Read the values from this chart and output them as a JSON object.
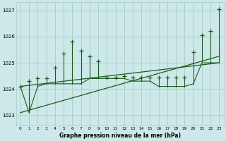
{
  "xlabel": "Graphe pression niveau de la mer (hPa)",
  "bg_color": "#cce8e8",
  "grid_color": "#aacccc",
  "line_color": "#1a5c1a",
  "xlim": [
    -0.5,
    23.5
  ],
  "ylim": [
    1022.6,
    1027.3
  ],
  "yticks": [
    1023,
    1024,
    1025,
    1026,
    1027
  ],
  "xtick_labels": [
    "0",
    "1",
    "2",
    "3",
    "4",
    "5",
    "6",
    "7",
    "8",
    "9",
    "10",
    "11",
    "12",
    "13",
    "14",
    "15",
    "16",
    "17",
    "18",
    "19",
    "20",
    "21",
    "22",
    "23"
  ],
  "x": [
    0,
    1,
    2,
    3,
    4,
    5,
    6,
    7,
    8,
    9,
    10,
    11,
    12,
    13,
    14,
    15,
    16,
    17,
    18,
    19,
    20,
    21,
    22,
    23
  ],
  "y_base": [
    1024.1,
    1023.1,
    1024.1,
    1024.2,
    1024.2,
    1024.2,
    1024.2,
    1024.2,
    1024.4,
    1024.4,
    1024.4,
    1024.4,
    1024.4,
    1024.3,
    1024.3,
    1024.3,
    1024.1,
    1024.1,
    1024.1,
    1024.1,
    1024.2,
    1025.0,
    1025.0,
    1025.0
  ],
  "y_spike": [
    1024.1,
    1024.3,
    1024.4,
    1024.4,
    1024.8,
    1025.35,
    1025.8,
    1025.45,
    1025.25,
    1025.05,
    1024.45,
    1024.45,
    1024.48,
    1024.45,
    1024.45,
    1024.45,
    1024.45,
    1024.45,
    1024.45,
    1024.45,
    1025.4,
    1026.05,
    1026.2,
    1027.05
  ],
  "trend1_x": [
    0,
    23
  ],
  "trend1_y": [
    1023.1,
    1025.25
  ],
  "trend2_x": [
    0,
    23
  ],
  "trend2_y": [
    1024.1,
    1025.0
  ]
}
